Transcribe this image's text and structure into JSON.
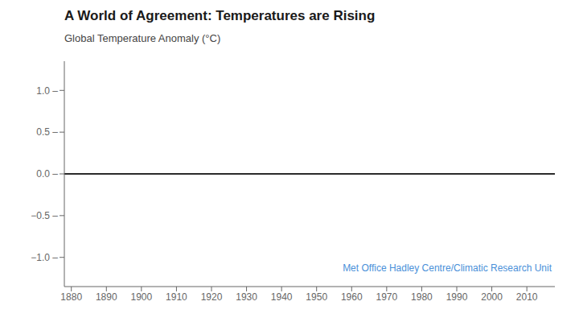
{
  "chart_data": {
    "type": "line",
    "title": "A World of Agreement: Temperatures are Rising",
    "ylabel": "Global Temperature Anomaly (°C)",
    "xlim": [
      1878,
      2018
    ],
    "xticks": [
      1880,
      1890,
      1900,
      1910,
      1920,
      1930,
      1940,
      1950,
      1960,
      1970,
      1980,
      1990,
      2000,
      2010
    ],
    "ylim": [
      -1.35,
      1.35
    ],
    "yticks": [
      {
        "value": 1.0,
        "label": "1.0 –"
      },
      {
        "value": 0.5,
        "label": "0.5 –"
      },
      {
        "value": 0.0,
        "label": "0.0 –"
      },
      {
        "value": -0.5,
        "label": "−0.5 –"
      },
      {
        "value": -1.0,
        "label": "−1.0 –"
      }
    ],
    "reference_line": {
      "y": 0.0,
      "color": "#2b2b2b"
    },
    "annotations": [
      {
        "text": "Met Office Hadley Centre/Climatic Research Unit",
        "color": "#4a90d9"
      }
    ],
    "grid": false
  }
}
